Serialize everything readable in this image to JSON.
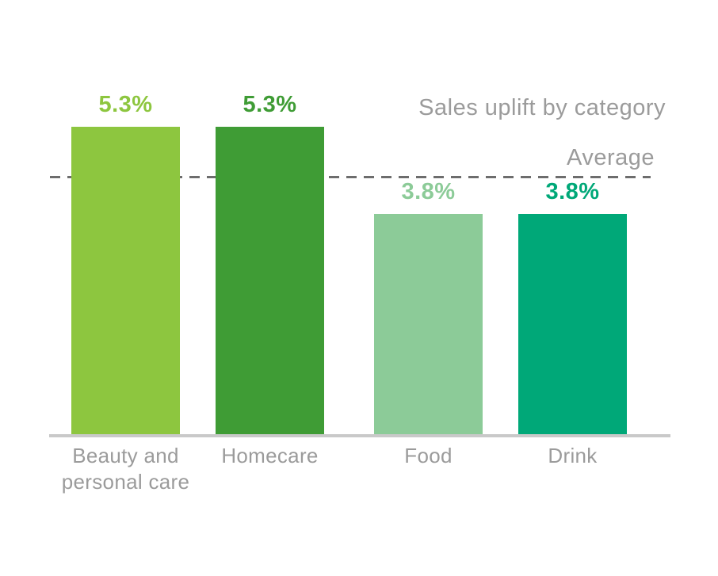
{
  "chart_data": {
    "type": "bar",
    "title": "Sales uplift by category",
    "average_label": "Average",
    "average_line_value": 4.45,
    "categories": [
      "Beauty and personal care",
      "Homecare",
      "Food",
      "Drink"
    ],
    "values": [
      5.3,
      5.3,
      3.8,
      3.8
    ],
    "value_labels": [
      "5.3%",
      "5.3%",
      "3.8%",
      "3.8%"
    ],
    "colors": [
      "#8dc63f",
      "#3f9c35",
      "#8ccb98",
      "#00a878"
    ],
    "grid": false,
    "legend": "none",
    "ylim": [
      0,
      5.8
    ],
    "annotations": [
      {
        "type": "dashed-line",
        "label": "Average",
        "color": "#6d6d6d"
      }
    ]
  }
}
